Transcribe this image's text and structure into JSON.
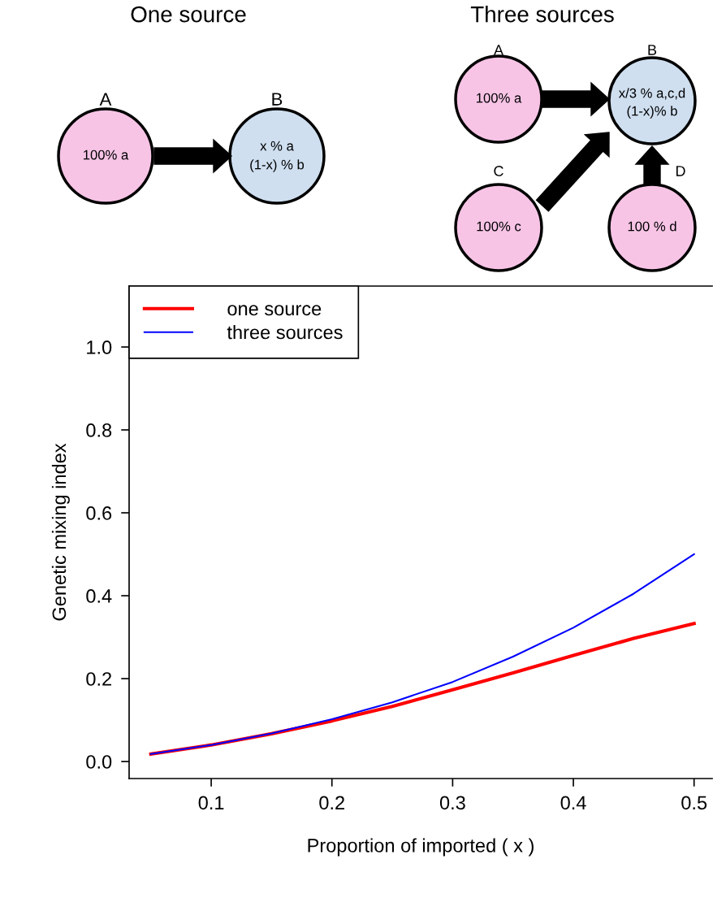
{
  "chart_data": {
    "type": "line",
    "xlabel": "Proportion of imported ( x )",
    "ylabel": "Genetic mixing index",
    "x": [
      0.05,
      0.1,
      0.15,
      0.2,
      0.25,
      0.3,
      0.35,
      0.4,
      0.45,
      0.5
    ],
    "series": [
      {
        "name": "one source",
        "color": "#ff0000",
        "values": [
          0.018,
          0.04,
          0.067,
          0.098,
          0.133,
          0.173,
          0.214,
          0.256,
          0.297,
          0.333
        ]
      },
      {
        "name": "three sources",
        "color": "#0000ff",
        "values": [
          0.018,
          0.04,
          0.068,
          0.102,
          0.143,
          0.192,
          0.253,
          0.323,
          0.405,
          0.5
        ]
      }
    ],
    "xlim": [
      0.032,
      0.515
    ],
    "ylim": [
      -0.041,
      1.147
    ],
    "xticks": [
      0.1,
      0.2,
      0.3,
      0.4,
      0.5
    ],
    "yticks": [
      {
        "value": 0,
        "label": "0.0"
      },
      {
        "value": 0.2,
        "label": "0.2"
      },
      {
        "value": 0.4,
        "label": "0.4"
      },
      {
        "value": 0.6,
        "label": "0.6"
      },
      {
        "value": 0.8,
        "label": "0.8"
      },
      {
        "value": 1.0,
        "label": "1.0"
      }
    ],
    "legend": "top left",
    "grid": false,
    "marker": "none",
    "line_style": "solid",
    "annotations": [
      "One source",
      "Three sources",
      "A",
      "B",
      "100% a",
      "x % a",
      "(1-x) % b",
      "A",
      "B",
      "100% a",
      "x/3 % a,c,d",
      "(1-x)% b",
      "C",
      "100% c",
      "D",
      "100 % d"
    ]
  }
}
